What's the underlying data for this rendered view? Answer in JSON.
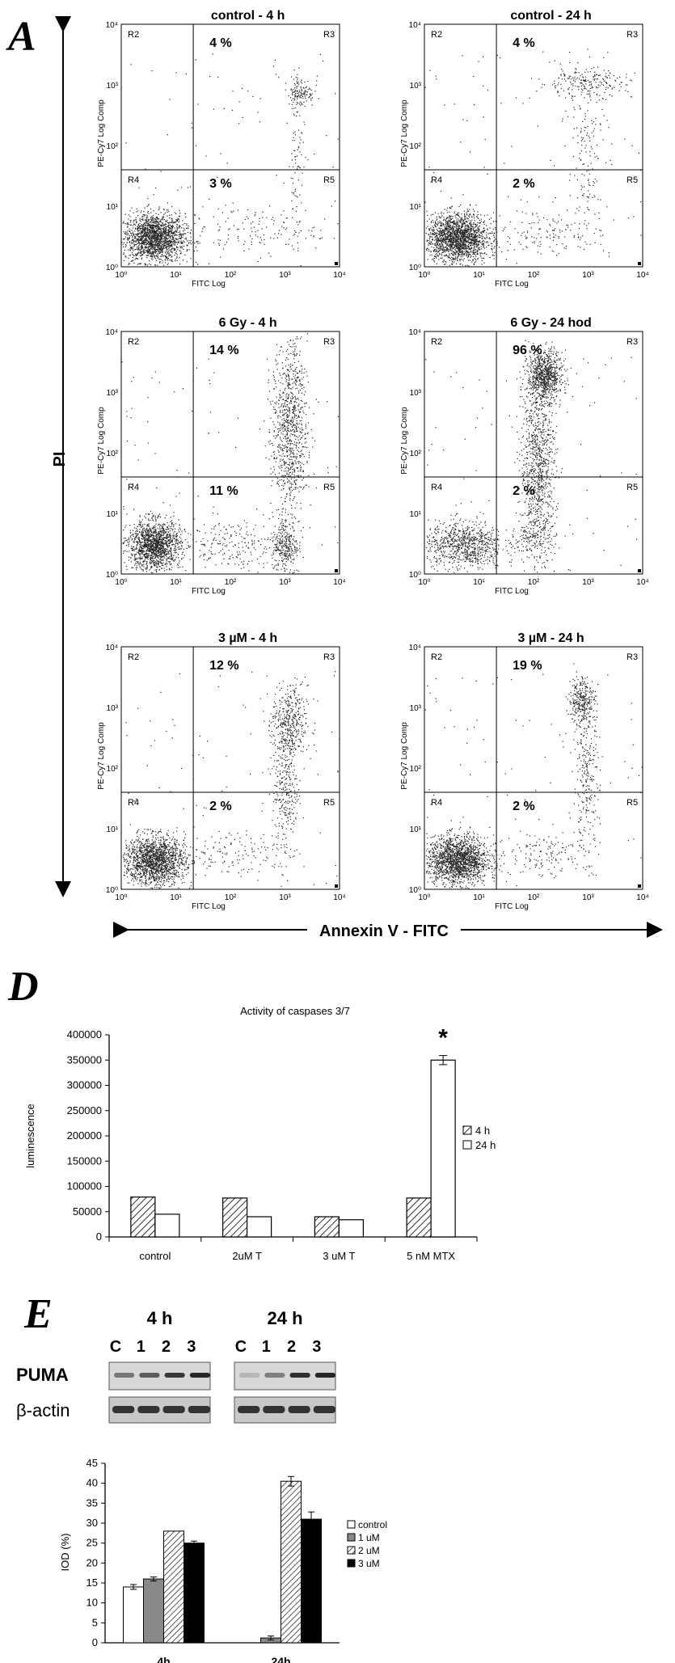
{
  "panel_a": {
    "letter": "A",
    "y_axis_label": "PI",
    "x_axis_label": "Annexin V - FITC",
    "plots": [
      {
        "title": "control - 4 h",
        "upper_right_pct": "4 %",
        "lower_right_pct": "3 %"
      },
      {
        "title": "control - 24 h",
        "upper_right_pct": "4 %",
        "lower_right_pct": "2 %"
      },
      {
        "title": "6 Gy - 4 h",
        "upper_right_pct": "14 %",
        "lower_right_pct": "11 %"
      },
      {
        "title": "6 Gy - 24 hod",
        "upper_right_pct": "96 %",
        "lower_right_pct": "2 %"
      },
      {
        "title": "3 µM - 4 h",
        "upper_right_pct": "12 %",
        "lower_right_pct": "2 %"
      },
      {
        "title": "3 µM - 24 h",
        "upper_right_pct": "19 %",
        "lower_right_pct": "2 %"
      }
    ],
    "region_labels": [
      "R2",
      "R3",
      "R4",
      "R5"
    ],
    "plot_y_label": "PE-Cy7 Log Comp",
    "plot_x_label": "FITC Log",
    "tick_labels": [
      "10⁰",
      "10¹",
      "10²",
      "10³",
      "10⁴"
    ]
  },
  "panel_d": {
    "letter": "D",
    "chart_data": {
      "type": "bar",
      "title": "Activity of caspases 3/7",
      "ylabel": "luminescence",
      "xlabel": "",
      "categories": [
        "control",
        "2uM T",
        "3 uM T",
        "5 nM MTX"
      ],
      "series": [
        {
          "name": "4 h",
          "values": [
            79000,
            77000,
            40000,
            77000
          ],
          "errors": [
            0,
            0,
            0,
            0
          ],
          "pattern": "hatched"
        },
        {
          "name": "24 h",
          "values": [
            45000,
            40000,
            34000,
            350000
          ],
          "errors": [
            0,
            0,
            0,
            9000
          ],
          "pattern": "white"
        }
      ],
      "ylim": [
        0,
        400000
      ],
      "yticks": [
        0,
        50000,
        100000,
        150000,
        200000,
        250000,
        300000,
        350000,
        400000
      ],
      "annotation": "*",
      "legend_position": "right"
    }
  },
  "panel_e": {
    "letter": "E",
    "blot_times": [
      "4 h",
      "24 h"
    ],
    "lanes": [
      "C",
      "1",
      "2",
      "3"
    ],
    "rows": [
      "PUMA",
      "β-actin"
    ],
    "chart_data": {
      "type": "bar",
      "ylabel": "IOD (%)",
      "xlabel": "",
      "categories": [
        "4h",
        "24h"
      ],
      "series": [
        {
          "name": "control",
          "values": [
            14,
            0
          ],
          "errors": [
            0.6,
            0
          ],
          "color": "#ffffff"
        },
        {
          "name": "1 uM",
          "values": [
            16,
            1.2
          ],
          "errors": [
            0.5,
            0.5
          ],
          "color": "#888888"
        },
        {
          "name": "2 uM",
          "values": [
            28,
            40.5
          ],
          "errors": [
            0,
            1.2
          ],
          "color": "hatched"
        },
        {
          "name": "3 uM",
          "values": [
            25,
            31
          ],
          "errors": [
            0.5,
            1.8
          ],
          "color": "#000000"
        }
      ],
      "ylim": [
        0,
        45
      ],
      "yticks": [
        0,
        5,
        10,
        15,
        20,
        25,
        30,
        35,
        40,
        45
      ],
      "legend_position": "right"
    }
  }
}
